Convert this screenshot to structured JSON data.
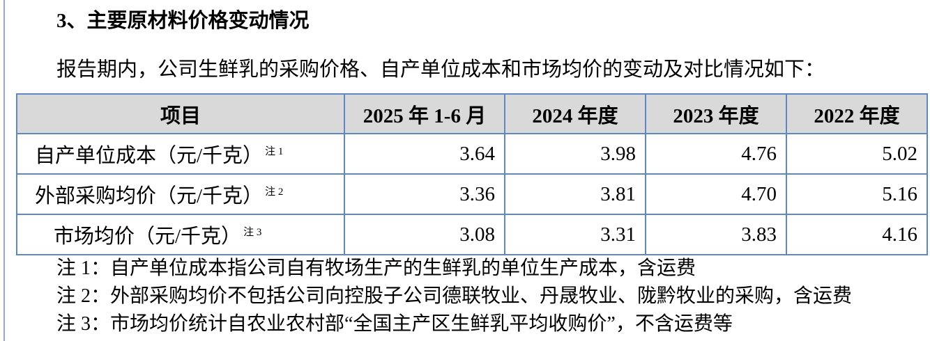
{
  "page": {
    "section_title": "3、主要原材料价格变动情况",
    "intro": "报告期内，公司生鲜乳的采购价格、自产单位成本和市场均价的变动及对比情况如下："
  },
  "table": {
    "columns": [
      "项目",
      "2025 年 1-6 月",
      "2024 年度",
      "2023 年度",
      "2022 年度"
    ],
    "rows": [
      {
        "label": "自产单位成本（元/千克）",
        "note_ref": "注 1",
        "values": [
          "3.64",
          "3.98",
          "4.76",
          "5.02"
        ]
      },
      {
        "label": "外部采购均价（元/千克）",
        "note_ref": "注 2",
        "values": [
          "3.36",
          "3.81",
          "4.70",
          "5.16"
        ]
      },
      {
        "label": "市场均价（元/千克）",
        "note_ref": "注 3",
        "values": [
          "3.08",
          "3.31",
          "3.83",
          "4.16"
        ]
      }
    ]
  },
  "notes": [
    "注 1：自产单位成本指公司自有牧场生产的生鲜乳的单位生产成本，含运费",
    "注 2：外部采购均价不包括公司向控股子公司德联牧业、丹晟牧业、陇黔牧业的采购，含运费",
    "注 3：市场均价统计自农业农村部“全国主产区生鲜乳平均收购价”，不含运费等"
  ],
  "colors": {
    "table_border": "#5e87c6",
    "header_background": "#d9d9d9",
    "margin_line": "#8fa9d4",
    "text": "#000000"
  }
}
